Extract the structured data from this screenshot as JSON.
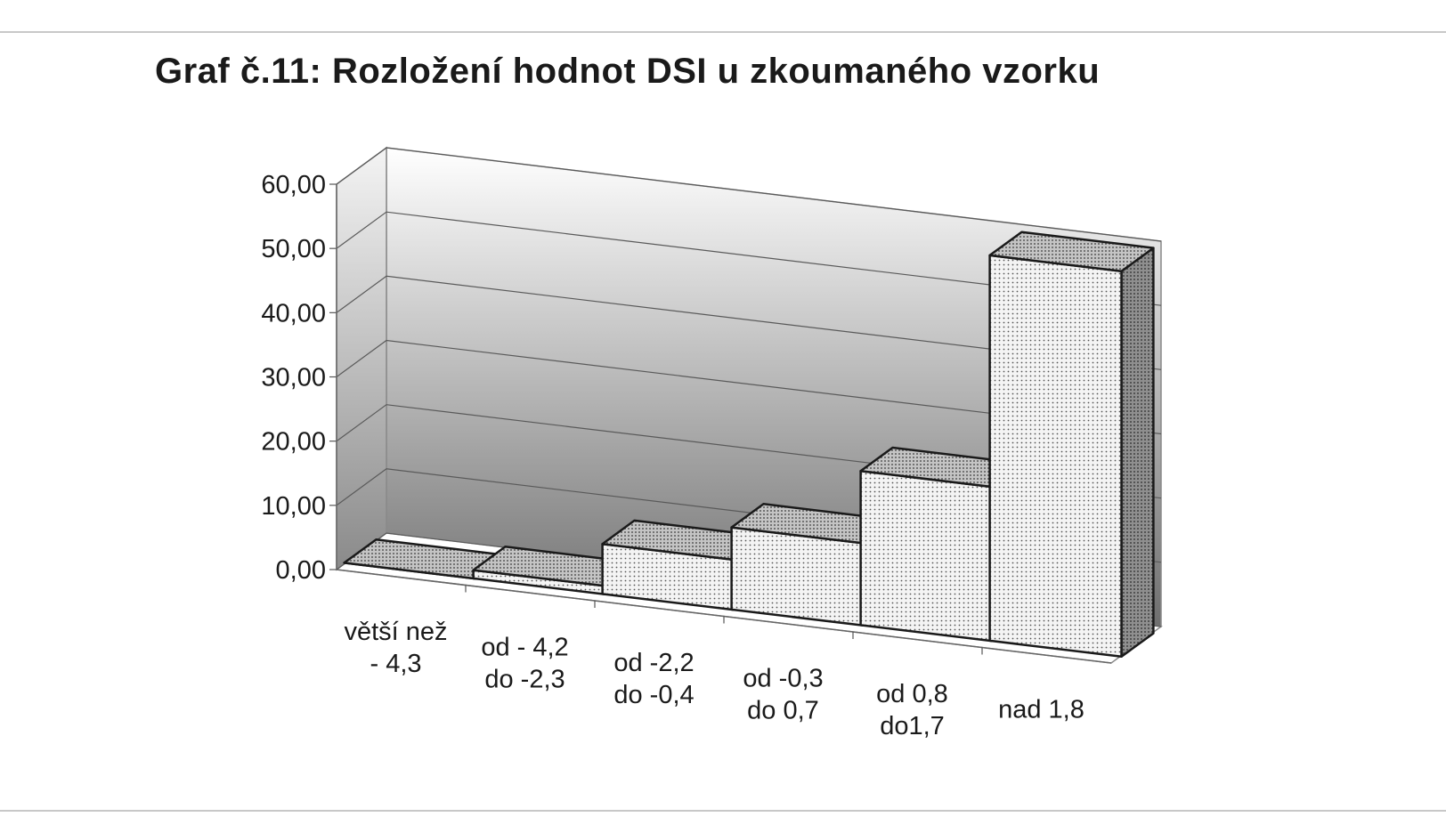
{
  "title": "Graf č.11:  Rozložení hodnot DSI u zkoumaného vzorku",
  "chart_data": {
    "type": "bar",
    "title": "Graf č.11:  Rozložení hodnot DSI u zkoumaného vzorku",
    "xlabel": "",
    "ylabel": "",
    "ylim": [
      0,
      60
    ],
    "yticks": [
      "0,00",
      "10,00",
      "20,00",
      "30,00",
      "40,00",
      "50,00",
      "60,00"
    ],
    "categories": [
      [
        "větší než",
        "- 4,3"
      ],
      [
        "od - 4,2",
        "do -2,3"
      ],
      [
        "od -2,2",
        "do -0,4"
      ],
      [
        "od -0,3",
        "do 0,7"
      ],
      [
        "od 0,8",
        "do1,7"
      ],
      [
        "nad 1,8"
      ]
    ],
    "values": [
      0.0,
      1.3,
      7.8,
      12.8,
      24.0,
      60.0
    ],
    "grid": true,
    "legend": "none",
    "style": "3d-column, dotted fill, grey gradient back wall",
    "colors": {
      "bar_front": "#f2f2f2",
      "bar_side": "#8c8c8c",
      "bar_top": "#bdbdbd",
      "outline": "#1a1a1a"
    }
  }
}
